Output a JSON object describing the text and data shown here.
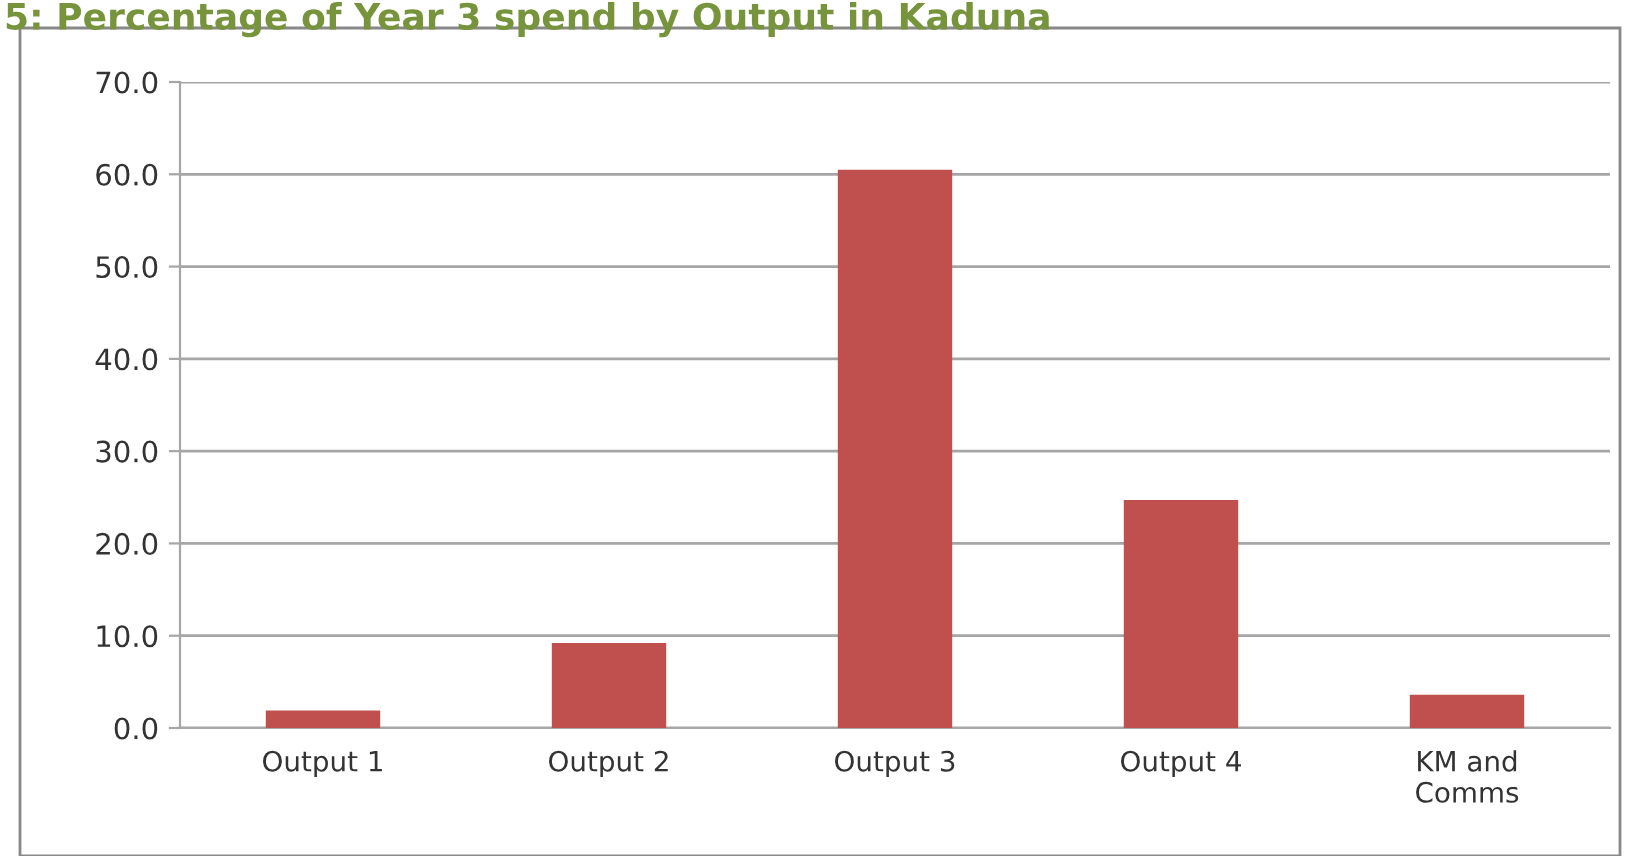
{
  "chart_data": {
    "type": "bar",
    "title": "5: Percentage of Year 3 spend by Output in Kaduna",
    "categories": [
      "Output 1",
      "Output 2",
      "Output 3",
      "Output 4",
      "KM and\nComms"
    ],
    "values": [
      1.9,
      9.2,
      60.5,
      24.7,
      3.6
    ],
    "color": "#c0504d",
    "ylim": [
      0,
      70
    ],
    "yticks": [
      {
        "value": 0,
        "label": "0.0"
      },
      {
        "value": 10,
        "label": "10.0"
      },
      {
        "value": 20,
        "label": "20.0"
      },
      {
        "value": 30,
        "label": "30.0"
      },
      {
        "value": 40,
        "label": "40.0"
      },
      {
        "value": 50,
        "label": "50.0"
      },
      {
        "value": 60,
        "label": "60.0"
      },
      {
        "value": 70,
        "label": "70.0"
      }
    ],
    "grid": "y"
  }
}
